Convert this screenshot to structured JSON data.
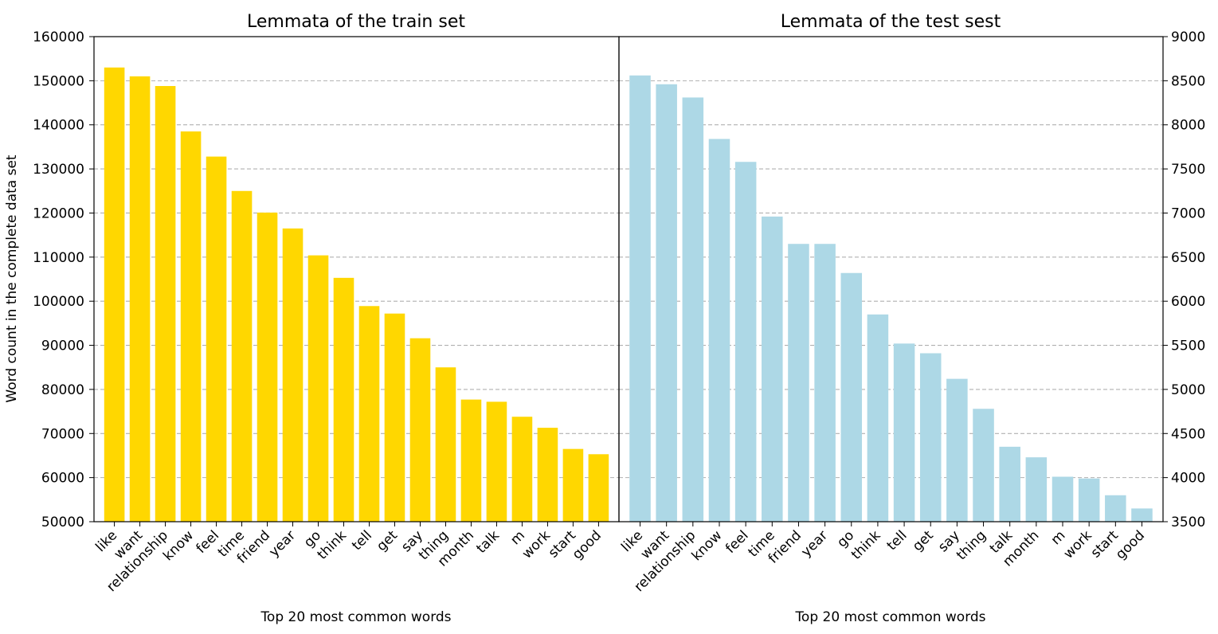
{
  "chart_data": [
    {
      "type": "bar",
      "title": "Lemmata of the train set",
      "xlabel": "Top 20 most common words",
      "ylabel": "Word count in the complete data set",
      "ylim": [
        50000,
        160000
      ],
      "yticks": [
        50000,
        60000,
        70000,
        80000,
        90000,
        100000,
        110000,
        120000,
        130000,
        140000,
        150000,
        160000
      ],
      "ytick_labels": [
        "50000",
        "60000",
        "70000",
        "80000",
        "90000",
        "100000",
        "110000",
        "120000",
        "130000",
        "140000",
        "150000",
        "160000"
      ],
      "y_axis_side": "left",
      "grid": "horizontal dashed",
      "color": "#FFD700",
      "categories": [
        "like",
        "want",
        "relationship",
        "know",
        "feel",
        "time",
        "friend",
        "year",
        "go",
        "think",
        "tell",
        "get",
        "say",
        "thing",
        "month",
        "talk",
        "m",
        "work",
        "start",
        "good"
      ],
      "values": [
        153000,
        151000,
        148800,
        138500,
        132800,
        125000,
        120100,
        116500,
        110400,
        105300,
        98900,
        97200,
        91600,
        85000,
        77700,
        77200,
        73800,
        71300,
        66500,
        65300
      ]
    },
    {
      "type": "bar",
      "title": "Lemmata of the test sest",
      "xlabel": "Top 20 most common words",
      "ylabel": "",
      "ylim": [
        3500,
        9000
      ],
      "yticks": [
        3500,
        4000,
        4500,
        5000,
        5500,
        6000,
        6500,
        7000,
        7500,
        8000,
        8500,
        9000
      ],
      "ytick_labels": [
        "3500",
        "4000",
        "4500",
        "5000",
        "5500",
        "6000",
        "6500",
        "7000",
        "7500",
        "8000",
        "8500",
        "9000"
      ],
      "y_axis_side": "right",
      "grid": "horizontal dashed",
      "color": "#ADD8E6",
      "categories": [
        "like",
        "want",
        "relationship",
        "know",
        "feel",
        "time",
        "friend",
        "year",
        "go",
        "think",
        "tell",
        "get",
        "say",
        "thing",
        "talk",
        "month",
        "m",
        "work",
        "start",
        "good"
      ],
      "values": [
        8560,
        8460,
        8310,
        7840,
        7580,
        6960,
        6650,
        6650,
        6320,
        5850,
        5520,
        5410,
        5120,
        4780,
        4350,
        4230,
        4010,
        3990,
        3800,
        3650
      ]
    }
  ]
}
